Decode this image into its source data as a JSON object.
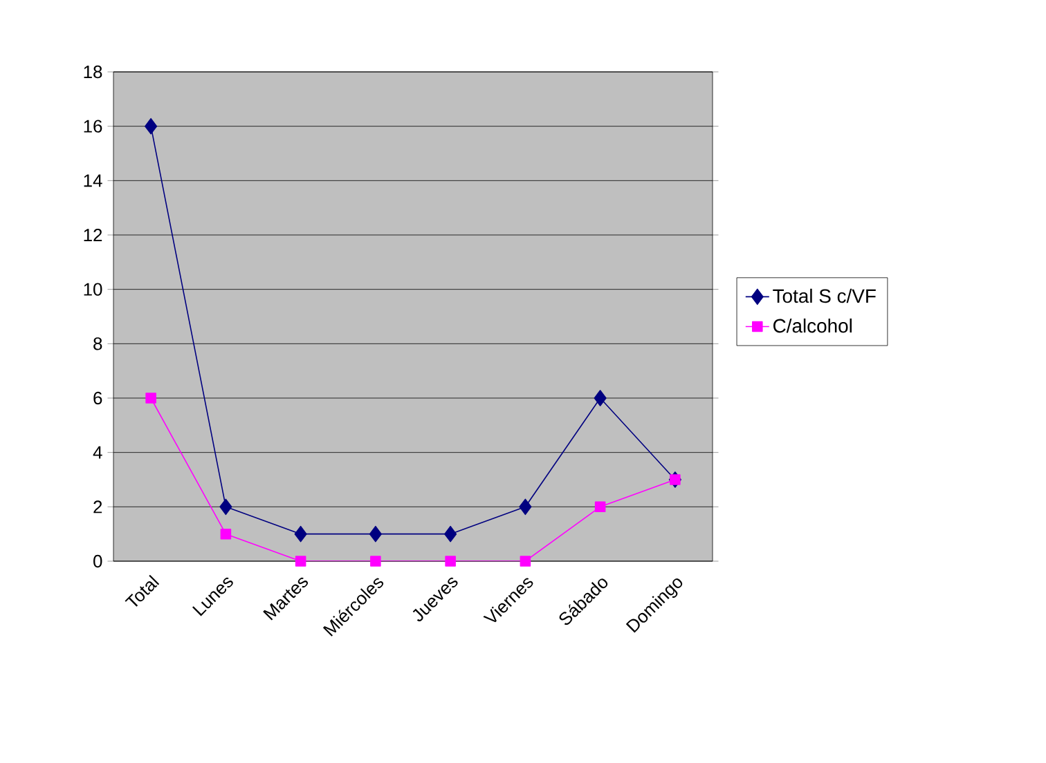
{
  "chart_data": {
    "type": "line",
    "categories": [
      "Total",
      "Lunes",
      "Martes",
      "Miércoles",
      "Jueves",
      "Viernes",
      "Sábado",
      "Domingo"
    ],
    "series": [
      {
        "name": "Total S c/VF",
        "color": "#000080",
        "marker": "diamond",
        "values": [
          16,
          2,
          1,
          1,
          1,
          2,
          6,
          3
        ]
      },
      {
        "name": "C/alcohol",
        "color": "#ff00ff",
        "marker": "square",
        "values": [
          6,
          1,
          0,
          0,
          0,
          0,
          2,
          3
        ]
      }
    ],
    "ylim": [
      0,
      18
    ],
    "yticks": [
      0,
      2,
      4,
      6,
      8,
      10,
      12,
      14,
      16,
      18
    ],
    "grid": "y",
    "legend": "right",
    "line_style": "solid"
  }
}
